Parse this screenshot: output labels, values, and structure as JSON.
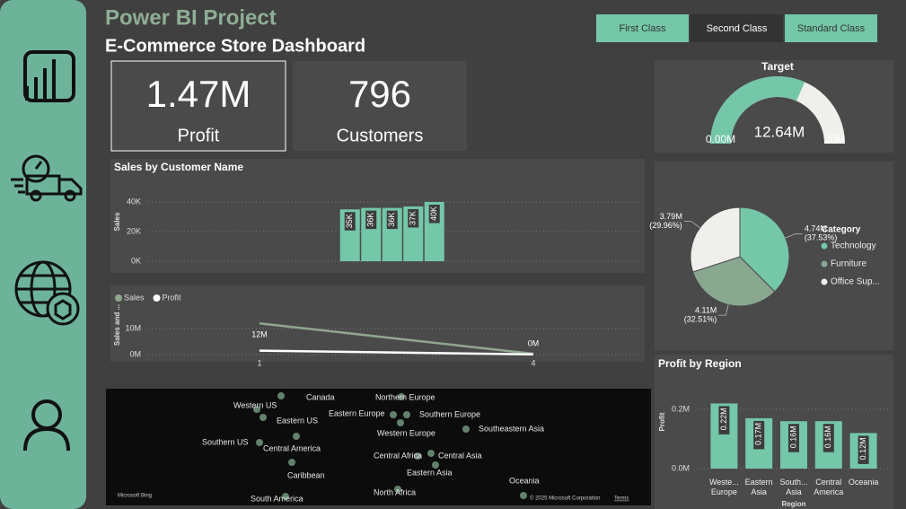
{
  "header": {
    "title": "Power BI Project",
    "subtitle": "E-Commerce Store Dashboard"
  },
  "filters": [
    "First Class",
    "Second Class",
    "Standard Class"
  ],
  "kpis": [
    {
      "value": "1.47M",
      "label": "Profit"
    },
    {
      "value": "796",
      "label": "Customers"
    }
  ],
  "chart_data": [
    {
      "type": "gauge",
      "title": "Target",
      "value": 12.64,
      "value_label": "12.64M",
      "ylim": [
        0,
        20
      ],
      "yticks": [
        {
          "value": 0,
          "label": "0.00M"
        },
        {
          "value": 20,
          "label": "20M"
        }
      ],
      "color": "#74c7a8",
      "track_color": "#efefeb"
    },
    {
      "type": "bar",
      "title": "Sales by Customer Name",
      "y_label": "Sales",
      "categories": [
        null,
        null,
        null,
        null,
        null
      ],
      "values": [
        35000,
        36000,
        36000,
        37000,
        40000
      ],
      "value_labels": [
        "35K",
        "36K",
        "36K",
        "37K",
        "40K"
      ],
      "color": "#74c7a8",
      "ylim": [
        0,
        42000
      ],
      "yticks": [
        {
          "value": 0,
          "label": "0K"
        },
        {
          "value": 20000,
          "label": "20K"
        },
        {
          "value": 40000,
          "label": "40K"
        }
      ],
      "grid": true
    },
    {
      "type": "line",
      "y_label": "Sales and ...",
      "x": [
        1,
        4
      ],
      "xlim": [
        1,
        4
      ],
      "xticks": [
        1,
        4
      ],
      "ylim": [
        0,
        14000000
      ],
      "yticks": [
        {
          "value": 0,
          "label": "0M"
        },
        {
          "value": 10000000,
          "label": "10M"
        }
      ],
      "grid": true,
      "series": [
        {
          "name": "Sales",
          "color": "#8fa68f",
          "values": [
            12000000,
            300000
          ],
          "value_labels": [
            "12M",
            "0M"
          ]
        },
        {
          "name": "Profit",
          "color": "#ffffff",
          "values": [
            1500000,
            100000
          ]
        }
      ]
    },
    {
      "type": "pie",
      "legend_title": "Category",
      "categories": [
        "Technology",
        "Furniture",
        "Office Sup..."
      ],
      "values": [
        4.74,
        4.11,
        3.79
      ],
      "value_labels": [
        "4.74M",
        "4.11M",
        "3.79M"
      ],
      "percents": [
        37.53,
        32.51,
        29.96
      ],
      "percent_labels": [
        "(37.53%)",
        "(32.51%)",
        "(29.96%)"
      ],
      "colors": [
        "#74c7a8",
        "#8aa890",
        "#efefeb"
      ],
      "legend": "right"
    },
    {
      "type": "bar",
      "title": "Profit by Region",
      "y_label": "Profit",
      "x_label": "Region",
      "categories": [
        "Weste... Europe",
        "Eastern Asia",
        "South... Asia",
        "Central America",
        "Oceania"
      ],
      "values": [
        220000,
        170000,
        160000,
        160000,
        120000
      ],
      "value_labels": [
        "0.22M",
        "0.17M",
        "0.16M",
        "0.16M",
        "0.12M"
      ],
      "color": "#74c7a8",
      "ylim": [
        0,
        240000
      ],
      "yticks": [
        {
          "value": 0,
          "label": "0.0M"
        },
        {
          "value": 200000,
          "label": "0.2M"
        }
      ],
      "grid": true
    },
    {
      "type": "map",
      "places": [
        "Canada",
        "Western US",
        "Eastern US",
        "Eastern Europe",
        "Northern Europe",
        "Southern Europe",
        "Southeastern Asia",
        "Western Europe",
        "Southern US",
        "Central America",
        "Central Africa",
        "Central Asia",
        "Eastern Asia",
        "Caribbean",
        "Oceania",
        "South America",
        "North Africa"
      ],
      "attribution": "Microsoft Bing",
      "copyright": "© 2025 Microsoft Corporation",
      "terms": "Terms"
    }
  ]
}
